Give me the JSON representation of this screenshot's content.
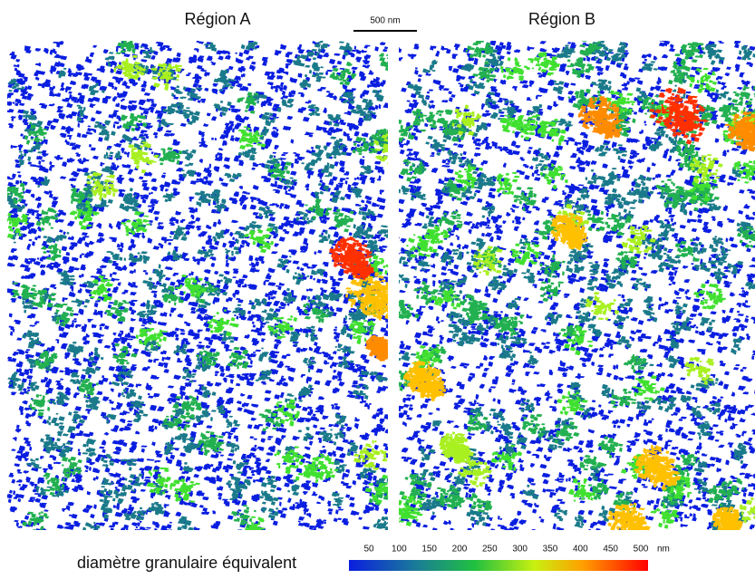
{
  "header": {
    "left_title": "Région A",
    "right_title": "Région B",
    "scale_bar": "500 nm"
  },
  "colorbar": {
    "label": "diamètre granulaire équivalent",
    "ticks": [
      50,
      100,
      150,
      200,
      250,
      300,
      350,
      400,
      450,
      500
    ],
    "unit": "nm"
  }
}
